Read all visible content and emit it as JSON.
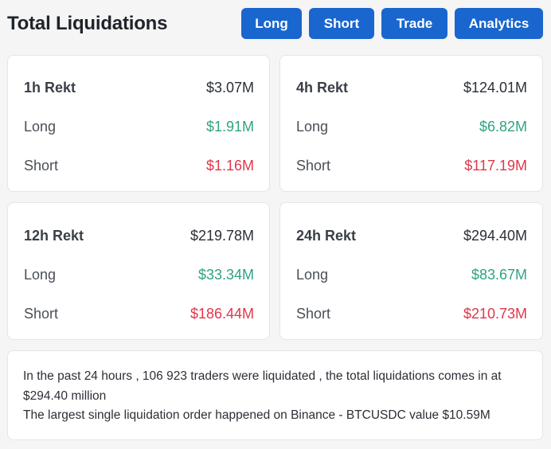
{
  "header": {
    "title": "Total Liquidations",
    "buttons": {
      "long": "Long",
      "short": "Short",
      "trade": "Trade",
      "analytics": "Analytics"
    }
  },
  "cards": [
    {
      "label": "1h Rekt",
      "total": "$3.07M",
      "long_label": "Long",
      "long_value": "$1.91M",
      "short_label": "Short",
      "short_value": "$1.16M"
    },
    {
      "label": "4h Rekt",
      "total": "$124.01M",
      "long_label": "Long",
      "long_value": "$6.82M",
      "short_label": "Short",
      "short_value": "$117.19M"
    },
    {
      "label": "12h Rekt",
      "total": "$219.78M",
      "long_label": "Long",
      "long_value": "$33.34M",
      "short_label": "Short",
      "short_value": "$186.44M"
    },
    {
      "label": "24h Rekt",
      "total": "$294.40M",
      "long_label": "Long",
      "long_value": "$83.67M",
      "short_label": "Short",
      "short_value": "$210.73M"
    }
  ],
  "summary": {
    "line1": "In the past 24 hours , 106 923 traders were liquidated , the total liquidations comes in at $294.40 million",
    "line2": "The largest single liquidation order happened on Binance - BTCUSDC value $10.59M"
  },
  "colors": {
    "button": "#1a66cf",
    "long_value": "#2fa383",
    "short_value": "#e0364a"
  }
}
